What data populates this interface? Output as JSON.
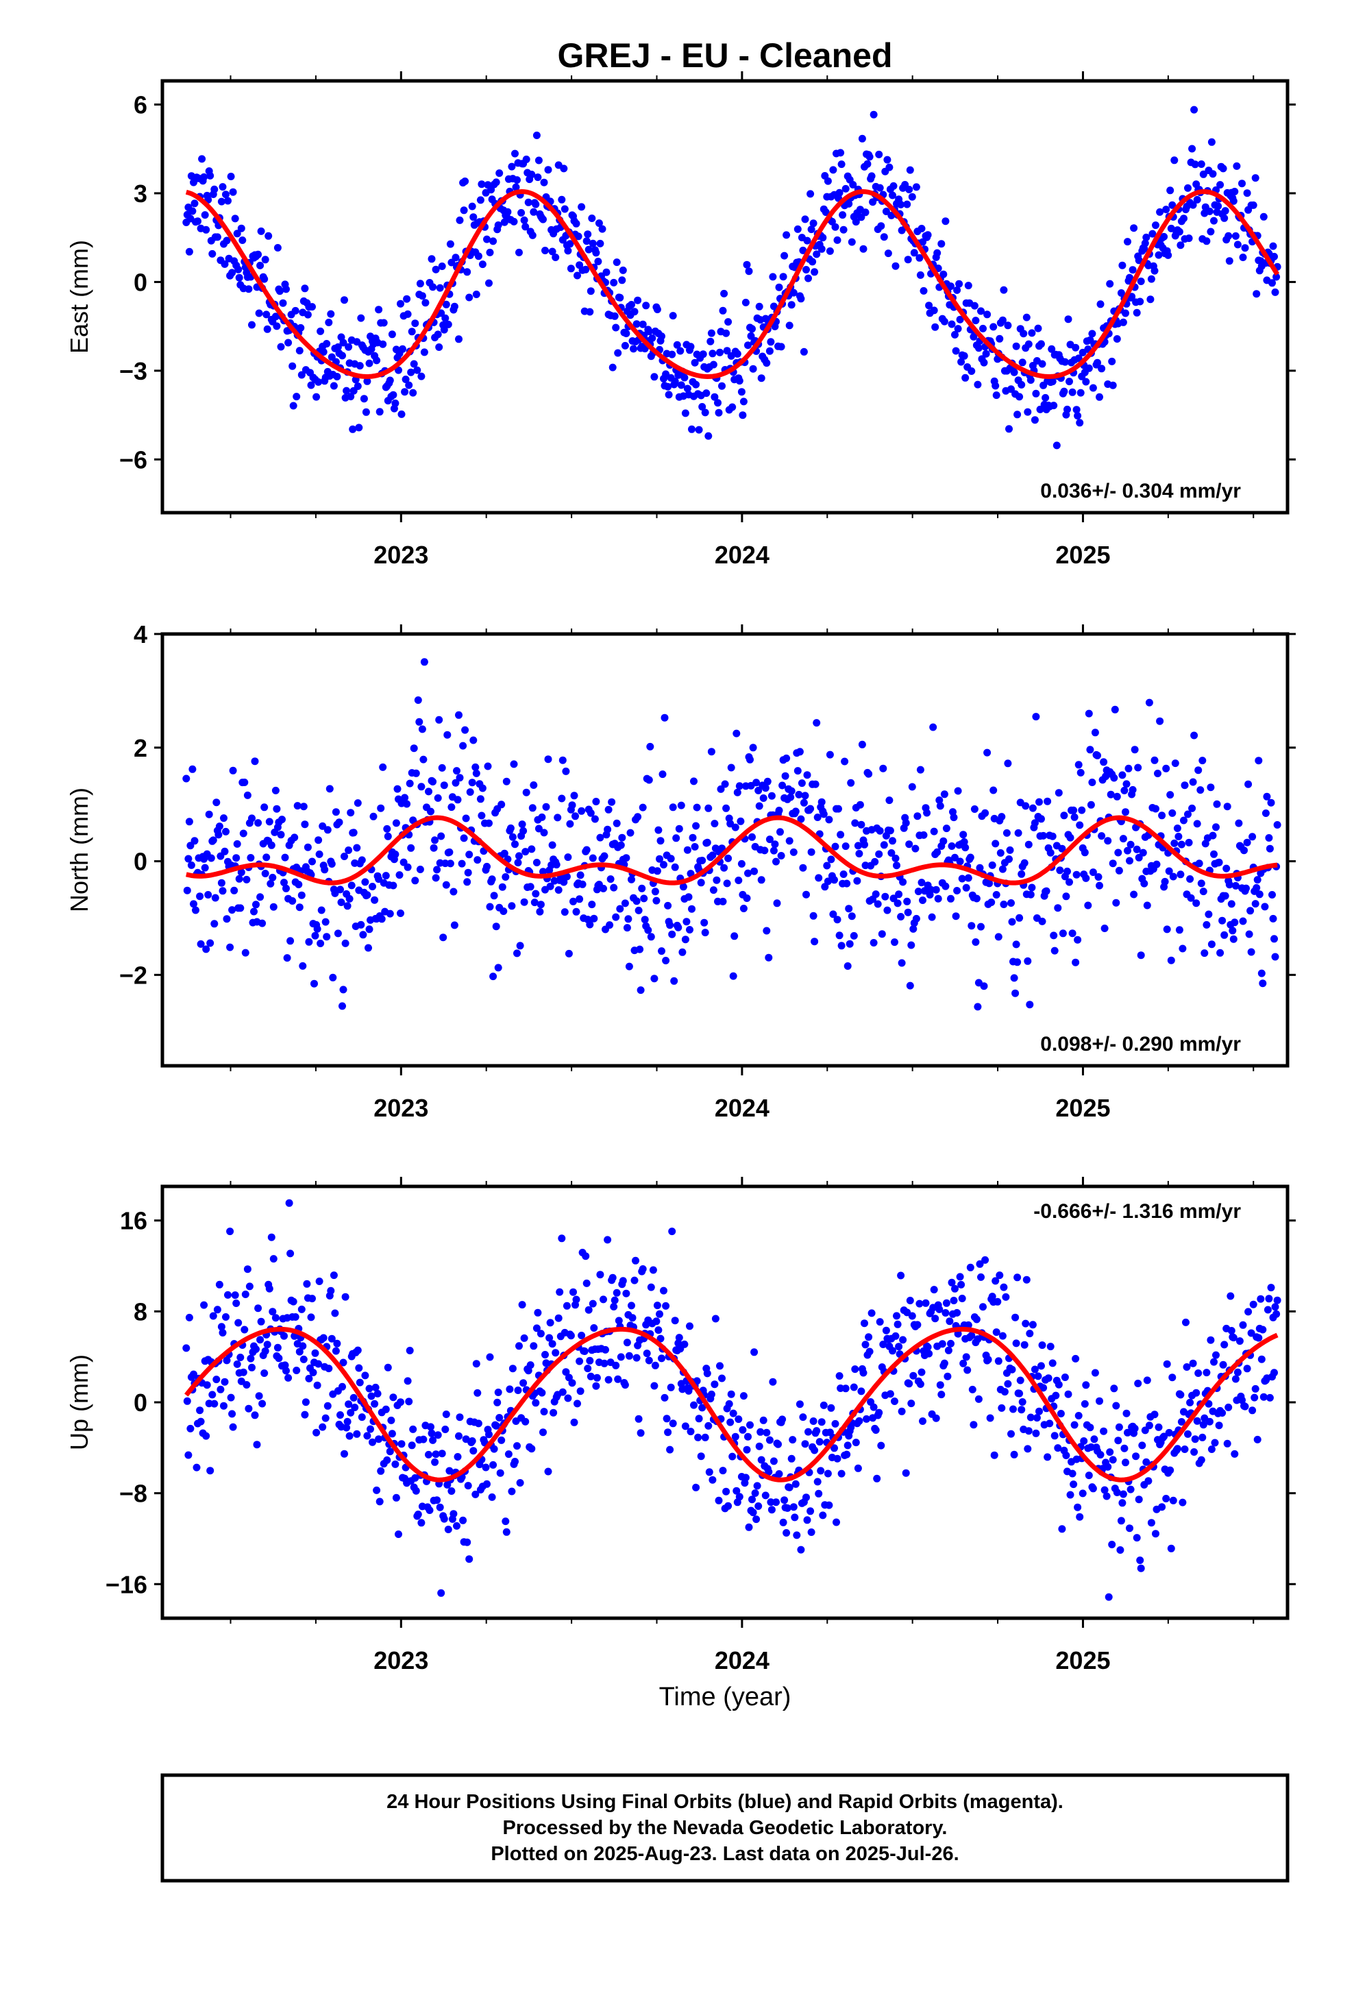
{
  "title": "GREJ  - EU - Cleaned",
  "x_axis_label": "Time (year)",
  "footer": {
    "line1": "24 Hour Positions Using Final Orbits (blue) and Rapid Orbits (magenta).",
    "line2": "Processed by the Nevada Geodetic Laboratory.",
    "line3": "Plotted on 2025-Aug-23. Last data on 2025-Jul-26."
  },
  "colors": {
    "points": "#0000ff",
    "fit": "#ff0000",
    "frame": "#000000"
  },
  "chart_data": [
    {
      "type": "scatter",
      "ylabel": "East (mm)",
      "rate_label": "0.036+/- 0.304 mm/yr",
      "rate_position": "bottom-right",
      "xlim": [
        2022.3,
        2025.6
      ],
      "ylim": [
        -7.8,
        6.8
      ],
      "yticks": [
        -6,
        -3,
        0,
        3,
        6
      ],
      "ytick_labels": [
        "−6",
        "−3",
        "0",
        "3",
        "6"
      ],
      "xticks": [
        2023,
        2024,
        2025
      ],
      "xtick_labels": [
        "2023",
        "2024",
        "2025"
      ],
      "x_minor_ticks": [
        2022.5,
        2022.75,
        2023.25,
        2023.5,
        2023.75,
        2024.25,
        2024.5,
        2024.75,
        2025.25,
        2025.5
      ],
      "fit": {
        "amp1": 3.1,
        "phase1": 0.0,
        "amp2": 0.35,
        "phase2": 0.6,
        "offset": -0.35
      },
      "scatter_sigma": 0.9,
      "x_start": 2022.37,
      "x_end": 2025.57,
      "n_points": 1050,
      "seed": 11
    },
    {
      "type": "scatter",
      "ylabel": "North (mm)",
      "rate_label": "0.098+/- 0.290 mm/yr",
      "rate_position": "bottom-right",
      "xlim": [
        2022.3,
        2025.6
      ],
      "ylim": [
        -3.6,
        4.0
      ],
      "yticks": [
        -2,
        0,
        2,
        4
      ],
      "ytick_labels": [
        "−2",
        "0",
        "2",
        "4"
      ],
      "xticks": [
        2023,
        2024,
        2025
      ],
      "xtick_labels": [
        "2023",
        "2024",
        "2025"
      ],
      "x_minor_ticks": [
        2022.5,
        2022.75,
        2023.25,
        2023.5,
        2023.75,
        2024.25,
        2024.5,
        2024.75,
        2025.25,
        2025.5
      ],
      "fit": {
        "amp1": 0.42,
        "phase1": 1.55,
        "amp2": 0.3,
        "phase2": 3.4,
        "offset": 0.05
      },
      "scatter_sigma": 0.85,
      "x_start": 2022.37,
      "x_end": 2025.57,
      "n_points": 1050,
      "seed": 23
    },
    {
      "type": "scatter",
      "ylabel": "Up (mm)",
      "rate_label": "-0.666+/- 1.316 mm/yr",
      "rate_position": "top-right",
      "xlim": [
        2022.3,
        2025.6
      ],
      "ylim": [
        -19,
        19
      ],
      "yticks": [
        -16,
        -8,
        0,
        8,
        16
      ],
      "ytick_labels": [
        "−16",
        "−8",
        "0",
        "8",
        "16"
      ],
      "xticks": [
        2023,
        2024,
        2025
      ],
      "xtick_labels": [
        "2023",
        "2024",
        "2025"
      ],
      "x_minor_ticks": [
        2022.5,
        2022.75,
        2023.25,
        2023.5,
        2023.75,
        2024.25,
        2024.5,
        2024.75,
        2025.25,
        2025.5
      ],
      "fit": {
        "amp1": 6.6,
        "phase1": -1.6,
        "amp2": 0.6,
        "phase2": 0.5,
        "offset": 0.3
      },
      "scatter_sigma": 3.6,
      "x_start": 2022.37,
      "x_end": 2025.57,
      "n_points": 1050,
      "seed": 37
    }
  ]
}
